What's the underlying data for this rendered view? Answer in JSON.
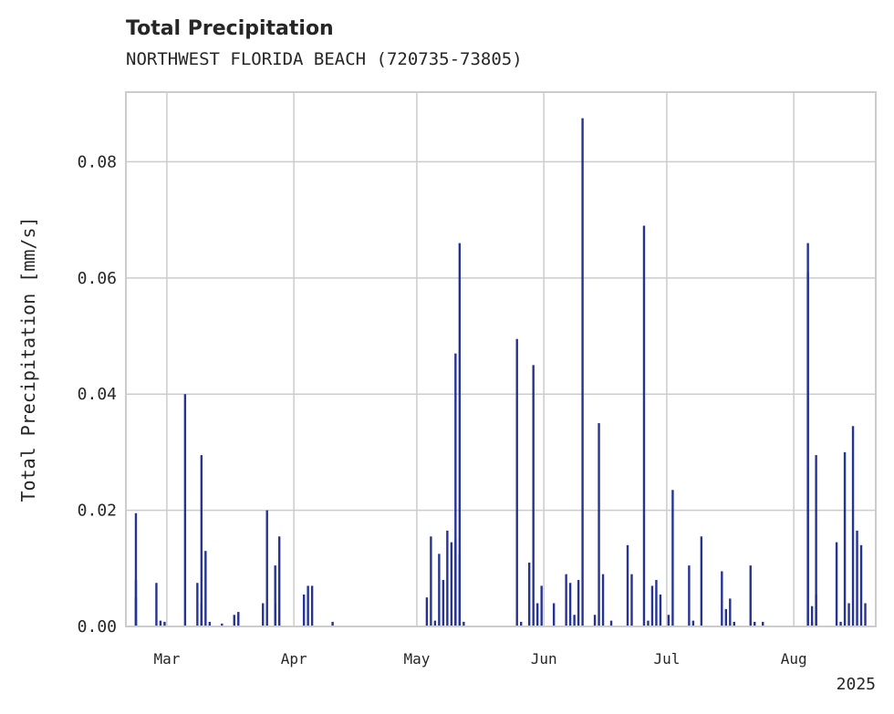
{
  "chart_data": {
    "type": "bar",
    "title": "Total Precipitation",
    "subtitle": "NORTHWEST FLORIDA BEACH (720735-73805)",
    "ylabel": "Total Precipitation [mm/s]",
    "xlabel": "",
    "year_label": "2025",
    "xlim": [
      "2025-02-19",
      "2025-08-21"
    ],
    "ylim": [
      0,
      0.092
    ],
    "yticks": [
      0.0,
      0.02,
      0.04,
      0.06,
      0.08
    ],
    "ytick_labels": [
      "0.00",
      "0.02",
      "0.04",
      "0.06",
      "0.08"
    ],
    "xticks": [
      "2025-03-01",
      "2025-04-01",
      "2025-05-01",
      "2025-06-01",
      "2025-07-01",
      "2025-08-01"
    ],
    "xtick_labels": [
      "Mar",
      "Apr",
      "May",
      "Jun",
      "Jul",
      "Aug"
    ],
    "grid": true,
    "bar_color": "#253494",
    "series": [
      {
        "x": [
          "2025-02-21",
          "2025-02-21",
          "2025-02-21",
          "2025-02-26",
          "2025-02-27",
          "2025-02-28",
          "2025-03-05",
          "2025-03-08",
          "2025-03-09",
          "2025-03-09",
          "2025-03-09",
          "2025-03-10",
          "2025-03-11",
          "2025-03-14",
          "2025-03-17",
          "2025-03-18",
          "2025-03-24",
          "2025-03-25",
          "2025-03-27",
          "2025-03-27",
          "2025-03-28",
          "2025-04-03",
          "2025-04-04",
          "2025-04-05",
          "2025-04-10",
          "2025-05-03",
          "2025-05-04",
          "2025-05-05",
          "2025-05-06",
          "2025-05-07",
          "2025-05-08",
          "2025-05-09",
          "2025-05-10",
          "2025-05-10",
          "2025-05-11",
          "2025-05-11",
          "2025-05-12",
          "2025-05-25",
          "2025-05-26",
          "2025-05-28",
          "2025-05-29",
          "2025-05-30",
          "2025-05-31",
          "2025-06-03",
          "2025-06-06",
          "2025-06-07",
          "2025-06-08",
          "2025-06-09",
          "2025-06-10",
          "2025-06-13",
          "2025-06-14",
          "2025-06-15",
          "2025-06-17",
          "2025-06-21",
          "2025-06-22",
          "2025-06-25",
          "2025-06-26",
          "2025-06-27",
          "2025-06-28",
          "2025-06-29",
          "2025-07-01",
          "2025-07-02",
          "2025-07-06",
          "2025-07-07",
          "2025-07-09",
          "2025-07-14",
          "2025-07-15",
          "2025-07-16",
          "2025-07-17",
          "2025-07-21",
          "2025-07-22",
          "2025-07-24",
          "2025-08-04",
          "2025-08-04",
          "2025-08-05",
          "2025-08-05",
          "2025-08-06",
          "2025-08-06",
          "2025-08-11",
          "2025-08-12",
          "2025-08-13",
          "2025-08-14",
          "2025-08-15",
          "2025-08-16",
          "2025-08-17",
          "2025-08-18"
        ],
        "values": [
          0.005,
          0.0195,
          0.008,
          0.0075,
          0.001,
          0.0008,
          0.04,
          0.0075,
          0.004,
          0.0295,
          0.001,
          0.013,
          0.0008,
          0.0005,
          0.002,
          0.0025,
          0.004,
          0.02,
          0.004,
          0.0105,
          0.0155,
          0.0055,
          0.007,
          0.007,
          0.0008,
          0.005,
          0.0155,
          0.001,
          0.0125,
          0.008,
          0.0165,
          0.0145,
          0.047,
          0.015,
          0.066,
          0.0125,
          0.0008,
          0.0495,
          0.0008,
          0.011,
          0.045,
          0.004,
          0.007,
          0.004,
          0.009,
          0.0075,
          0.002,
          0.008,
          0.0875,
          0.002,
          0.035,
          0.009,
          0.001,
          0.014,
          0.009,
          0.069,
          0.001,
          0.007,
          0.008,
          0.0055,
          0.002,
          0.0235,
          0.0105,
          0.001,
          0.0155,
          0.0095,
          0.003,
          0.0048,
          0.0008,
          0.0105,
          0.0008,
          0.0008,
          0.061,
          0.066,
          0.0035,
          0.0008,
          0.0295,
          0.0055,
          0.0145,
          0.0008,
          0.03,
          0.004,
          0.0345,
          0.0165,
          0.014,
          0.004
        ]
      }
    ]
  }
}
